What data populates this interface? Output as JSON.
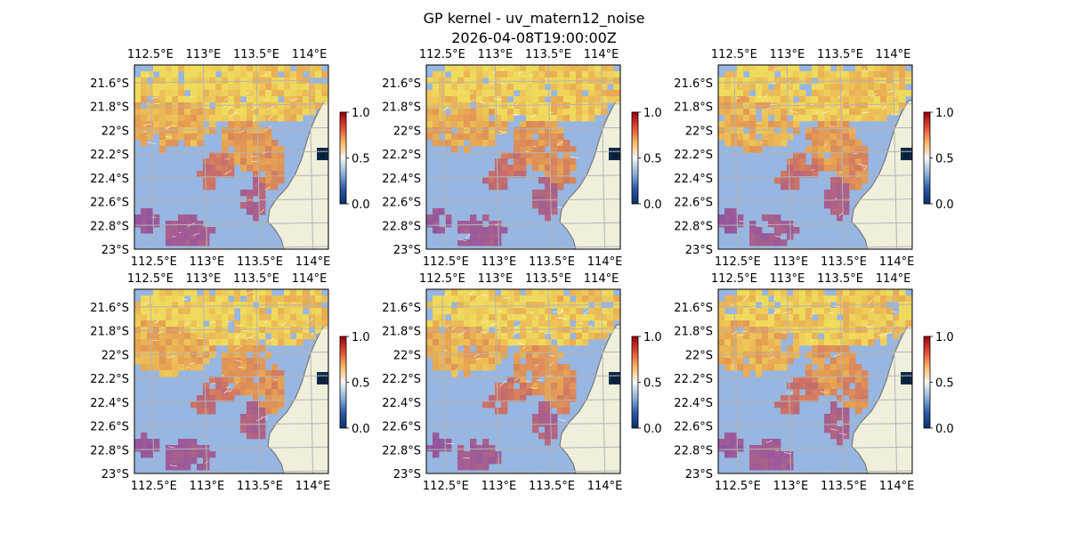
{
  "title": "GP kernel - uv_matern12_noise",
  "subtitle": "2026-04-08T19:00:00Z",
  "colors": {
    "ocean": "#97b6e1",
    "land": "#efefdb",
    "coast": "#7a7a7a",
    "grid": "#b4b4b4",
    "arrows": "#ffffff",
    "colorbar_stops": [
      "#08306b",
      "#2c5aa8",
      "#8fb3d9",
      "#f7f7f7",
      "#fdb863",
      "#e34a33",
      "#99000d"
    ],
    "field_stops": [
      "#5b3a9b",
      "#9b4b8f",
      "#d7684f",
      "#f4a23b",
      "#fde047"
    ]
  },
  "chart_data": [
    {
      "type": "heatmap",
      "panel": 1,
      "map_extent": {
        "lon": [
          112.35,
          114.18
        ],
        "lat": [
          -23.0,
          -21.45
        ]
      },
      "colorbar": {
        "range": [
          0.0,
          1.0
        ],
        "ticks": [
          "0.0",
          "0.5",
          "1.0"
        ]
      }
    },
    {
      "type": "heatmap",
      "panel": 2,
      "map_extent": {
        "lon": [
          112.35,
          114.18
        ],
        "lat": [
          -23.0,
          -21.45
        ]
      },
      "colorbar": {
        "range": [
          0.0,
          1.0
        ],
        "ticks": [
          "0.0",
          "0.5",
          "1.0"
        ]
      }
    },
    {
      "type": "heatmap",
      "panel": 3,
      "map_extent": {
        "lon": [
          112.35,
          114.18
        ],
        "lat": [
          -23.0,
          -21.45
        ]
      },
      "colorbar": {
        "range": [
          0.0,
          1.0
        ],
        "ticks": [
          "0.0",
          "0.5",
          "1.0"
        ]
      }
    },
    {
      "type": "heatmap",
      "panel": 4,
      "map_extent": {
        "lon": [
          112.35,
          114.18
        ],
        "lat": [
          -23.0,
          -21.45
        ]
      },
      "colorbar": {
        "range": [
          0.0,
          1.0
        ],
        "ticks": [
          "0.0",
          "0.5",
          "1.0"
        ]
      }
    },
    {
      "type": "heatmap",
      "panel": 5,
      "map_extent": {
        "lon": [
          112.35,
          114.18
        ],
        "lat": [
          -23.0,
          -21.45
        ]
      },
      "colorbar": {
        "range": [
          0.0,
          1.0
        ],
        "ticks": [
          "0.0",
          "0.5",
          "1.0"
        ]
      }
    },
    {
      "type": "heatmap",
      "panel": 6,
      "map_extent": {
        "lon": [
          112.35,
          114.18
        ],
        "lat": [
          -23.0,
          -21.45
        ]
      },
      "colorbar": {
        "range": [
          0.0,
          1.0
        ],
        "ticks": [
          "0.0",
          "0.5",
          "1.0"
        ]
      }
    }
  ],
  "axes": {
    "lon_ticks": [
      {
        "value": 112.5,
        "label": "112.5°E"
      },
      {
        "value": 113.0,
        "label": "113°E"
      },
      {
        "value": 113.5,
        "label": "113.5°E"
      },
      {
        "value": 114.0,
        "label": "114°E"
      }
    ],
    "lat_ticks": [
      {
        "value": -21.6,
        "label": "21.6°S"
      },
      {
        "value": -21.8,
        "label": "21.8°S"
      },
      {
        "value": -22.0,
        "label": "22°S"
      },
      {
        "value": -22.2,
        "label": "22.2°S"
      },
      {
        "value": -22.4,
        "label": "22.4°S"
      },
      {
        "value": -22.6,
        "label": "22.6°S"
      },
      {
        "value": -22.8,
        "label": "22.8°S"
      },
      {
        "value": -23.0,
        "label": "23°S"
      }
    ]
  }
}
